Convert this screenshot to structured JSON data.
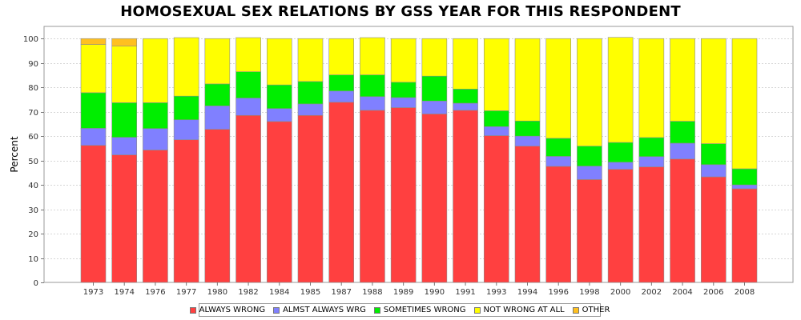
{
  "chart_data": {
    "type": "bar",
    "stacked": true,
    "title": "HOMOSEXUAL SEX RELATIONS BY GSS YEAR FOR THIS RESPONDENT",
    "xlabel": "",
    "ylabel": "Percent",
    "ylim": [
      0,
      105
    ],
    "yticks": [
      0,
      10,
      20,
      30,
      40,
      50,
      60,
      70,
      80,
      90,
      100
    ],
    "grid": true,
    "legend_position": "bottom",
    "categories": [
      "1973",
      "1974",
      "1976",
      "1977",
      "1980",
      "1982",
      "1984",
      "1985",
      "1987",
      "1988",
      "1989",
      "1990",
      "1991",
      "1993",
      "1994",
      "1996",
      "1998",
      "2000",
      "2002",
      "2004",
      "2006",
      "2008"
    ],
    "series": [
      {
        "name": "ALWAYS WRONG",
        "color": "#ff4040",
        "values": [
          56.2,
          52.3,
          54.3,
          58.5,
          62.8,
          68.5,
          66.0,
          68.5,
          73.9,
          70.6,
          71.7,
          69.1,
          70.6,
          60.2,
          55.9,
          47.6,
          42.2,
          46.4,
          47.4,
          50.6,
          43.3,
          38.4
        ]
      },
      {
        "name": "ALMST ALWAYS WRG",
        "color": "#8080ff",
        "values": [
          7.0,
          7.2,
          8.8,
          8.2,
          9.6,
          7.1,
          5.3,
          4.7,
          4.6,
          5.6,
          4.1,
          5.3,
          2.9,
          3.7,
          4.1,
          4.1,
          5.5,
          2.9,
          4.2,
          6.5,
          5.0,
          1.6
        ]
      },
      {
        "name": "SOMETIMES WRONG",
        "color": "#00ee00",
        "values": [
          14.6,
          14.2,
          10.6,
          9.7,
          9.0,
          10.8,
          9.7,
          9.2,
          6.6,
          8.9,
          6.3,
          10.2,
          5.8,
          6.5,
          6.2,
          7.4,
          8.2,
          8.1,
          7.8,
          9.0,
          8.6,
          6.6
        ]
      },
      {
        "name": "NOT WRONG AT ALL",
        "color": "#ffff00",
        "values": [
          19.8,
          23.2,
          26.3,
          24.0,
          18.6,
          14.0,
          19.0,
          17.6,
          14.9,
          15.3,
          17.9,
          15.4,
          20.7,
          29.6,
          33.8,
          40.9,
          44.1,
          43.1,
          40.6,
          33.9,
          43.1,
          53.4
        ]
      },
      {
        "name": "OTHER",
        "color": "#ffc020",
        "values": [
          2.4,
          3.1,
          0,
          0,
          0,
          0,
          0,
          0,
          0,
          0,
          0,
          0,
          0,
          0,
          0,
          0,
          0,
          0,
          0,
          0,
          0,
          0
        ]
      }
    ]
  }
}
